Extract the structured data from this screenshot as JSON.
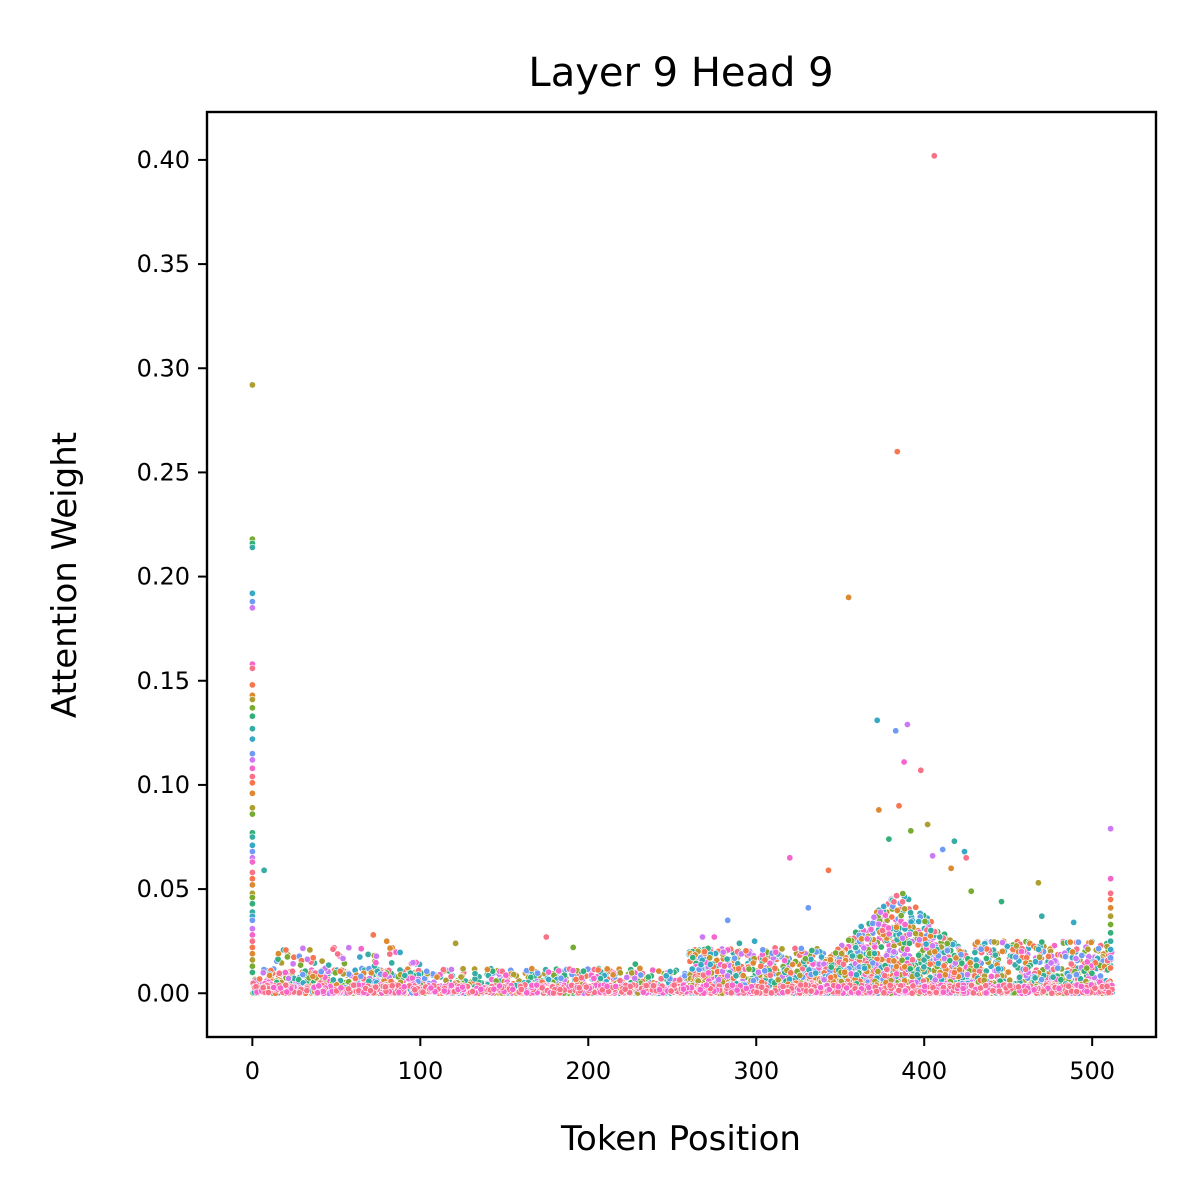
{
  "chart_data": {
    "type": "scatter",
    "title": "Layer 9 Head 9",
    "xlabel": "Token Position",
    "ylabel": "Attention Weight",
    "xlim": [
      -27,
      538
    ],
    "ylim": [
      -0.021,
      0.423
    ],
    "x_ticks": [
      0,
      100,
      200,
      300,
      400,
      500
    ],
    "y_ticks": [
      0.0,
      0.05,
      0.1,
      0.15,
      0.2,
      0.25,
      0.3,
      0.35,
      0.4
    ],
    "x_tick_labels": [
      "0",
      "100",
      "200",
      "300",
      "400",
      "500"
    ],
    "y_tick_labels": [
      "0.00",
      "0.05",
      "0.10",
      "0.15",
      "0.20",
      "0.25",
      "0.30",
      "0.35",
      "0.40"
    ],
    "grid": false,
    "legend": "none",
    "palette": [
      "#f77189",
      "#f7754f",
      "#dc8932",
      "#ae9d31",
      "#77ab31",
      "#33b07a",
      "#36ada4",
      "#38a9c5",
      "#6e9bf4",
      "#cc7af4",
      "#f565cc"
    ],
    "series_note_colors_cycle": true,
    "points": [
      {
        "x": 406,
        "y": 0.402
      },
      {
        "x": 384,
        "y": 0.26
      },
      {
        "x": 355,
        "y": 0.19
      },
      {
        "x": 0,
        "y": 0.292
      },
      {
        "x": 0,
        "y": 0.218
      },
      {
        "x": 0,
        "y": 0.216
      },
      {
        "x": 0,
        "y": 0.214
      },
      {
        "x": 0,
        "y": 0.192
      },
      {
        "x": 0,
        "y": 0.188
      },
      {
        "x": 0,
        "y": 0.185
      },
      {
        "x": 0,
        "y": 0.158
      },
      {
        "x": 0,
        "y": 0.156
      },
      {
        "x": 0,
        "y": 0.148
      },
      {
        "x": 0,
        "y": 0.143
      },
      {
        "x": 0,
        "y": 0.141
      },
      {
        "x": 0,
        "y": 0.137
      },
      {
        "x": 0,
        "y": 0.133
      },
      {
        "x": 0,
        "y": 0.127
      },
      {
        "x": 0,
        "y": 0.122
      },
      {
        "x": 0,
        "y": 0.115
      },
      {
        "x": 0,
        "y": 0.112
      },
      {
        "x": 0,
        "y": 0.108
      },
      {
        "x": 0,
        "y": 0.104
      },
      {
        "x": 0,
        "y": 0.101
      },
      {
        "x": 0,
        "y": 0.096
      },
      {
        "x": 0,
        "y": 0.089
      },
      {
        "x": 0,
        "y": 0.086
      },
      {
        "x": 0,
        "y": 0.077
      },
      {
        "x": 0,
        "y": 0.075
      },
      {
        "x": 0,
        "y": 0.071
      },
      {
        "x": 0,
        "y": 0.068
      },
      {
        "x": 0,
        "y": 0.065
      },
      {
        "x": 0,
        "y": 0.063
      },
      {
        "x": 0,
        "y": 0.058
      },
      {
        "x": 0,
        "y": 0.055
      },
      {
        "x": 0,
        "y": 0.052
      },
      {
        "x": 0,
        "y": 0.048
      },
      {
        "x": 0,
        "y": 0.046
      },
      {
        "x": 0,
        "y": 0.043
      },
      {
        "x": 0,
        "y": 0.039
      },
      {
        "x": 0,
        "y": 0.037
      },
      {
        "x": 0,
        "y": 0.035
      },
      {
        "x": 0,
        "y": 0.031
      },
      {
        "x": 0,
        "y": 0.028
      },
      {
        "x": 0,
        "y": 0.025
      },
      {
        "x": 0,
        "y": 0.022
      },
      {
        "x": 0,
        "y": 0.019
      },
      {
        "x": 0,
        "y": 0.016
      },
      {
        "x": 0,
        "y": 0.013
      },
      {
        "x": 0,
        "y": 0.01
      },
      {
        "x": 7,
        "y": 0.059
      },
      {
        "x": 372,
        "y": 0.131
      },
      {
        "x": 383,
        "y": 0.126
      },
      {
        "x": 390,
        "y": 0.129
      },
      {
        "x": 388,
        "y": 0.111
      },
      {
        "x": 398,
        "y": 0.107
      },
      {
        "x": 385,
        "y": 0.09
      },
      {
        "x": 373,
        "y": 0.088
      },
      {
        "x": 402,
        "y": 0.081
      },
      {
        "x": 392,
        "y": 0.078
      },
      {
        "x": 379,
        "y": 0.074
      },
      {
        "x": 418,
        "y": 0.073
      },
      {
        "x": 424,
        "y": 0.068
      },
      {
        "x": 411,
        "y": 0.069
      },
      {
        "x": 405,
        "y": 0.066
      },
      {
        "x": 320,
        "y": 0.065
      },
      {
        "x": 425,
        "y": 0.065
      },
      {
        "x": 343,
        "y": 0.059
      },
      {
        "x": 416,
        "y": 0.06
      },
      {
        "x": 468,
        "y": 0.053
      },
      {
        "x": 428,
        "y": 0.049
      },
      {
        "x": 446,
        "y": 0.044
      },
      {
        "x": 470,
        "y": 0.037
      },
      {
        "x": 489,
        "y": 0.034
      },
      {
        "x": 283,
        "y": 0.035
      },
      {
        "x": 268,
        "y": 0.027
      },
      {
        "x": 275,
        "y": 0.027
      },
      {
        "x": 175,
        "y": 0.027
      },
      {
        "x": 72,
        "y": 0.028
      },
      {
        "x": 80,
        "y": 0.025
      },
      {
        "x": 121,
        "y": 0.024
      },
      {
        "x": 191,
        "y": 0.022
      },
      {
        "x": 228,
        "y": 0.014
      },
      {
        "x": 290,
        "y": 0.024
      },
      {
        "x": 299,
        "y": 0.025
      },
      {
        "x": 331,
        "y": 0.041
      },
      {
        "x": 511,
        "y": 0.079
      },
      {
        "x": 511,
        "y": 0.055
      },
      {
        "x": 511,
        "y": 0.048
      },
      {
        "x": 511,
        "y": 0.045
      },
      {
        "x": 511,
        "y": 0.041
      },
      {
        "x": 511,
        "y": 0.037
      },
      {
        "x": 511,
        "y": 0.033
      },
      {
        "x": 511,
        "y": 0.029
      },
      {
        "x": 511,
        "y": 0.025
      },
      {
        "x": 511,
        "y": 0.021
      },
      {
        "x": 511,
        "y": 0.017
      }
    ],
    "dense_band": {
      "description_free": true,
      "segments": [
        {
          "x_from": 0,
          "x_to": 260,
          "y_max": 0.012,
          "count": 1100
        },
        {
          "x_from": 10,
          "x_to": 100,
          "y_max": 0.022,
          "count": 250
        },
        {
          "x_from": 260,
          "x_to": 340,
          "y_max": 0.022,
          "count": 800
        },
        {
          "x_from": 340,
          "x_to": 430,
          "y_max": 0.05,
          "count": 1600
        },
        {
          "x_from": 430,
          "x_to": 512,
          "y_max": 0.025,
          "count": 700
        }
      ]
    }
  }
}
